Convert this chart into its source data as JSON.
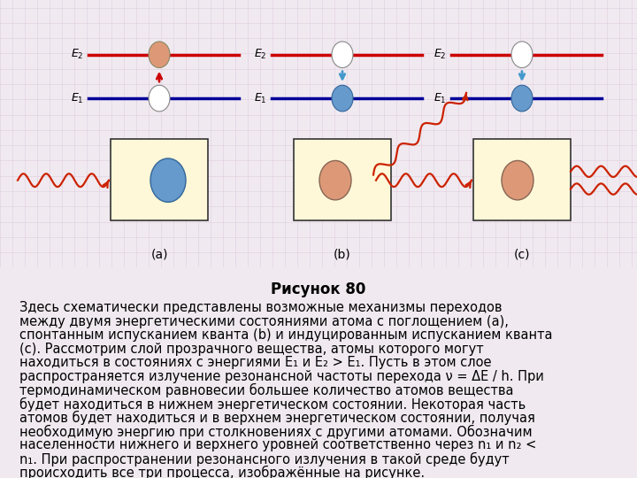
{
  "bg_color": "#f0eaf0",
  "diagram_bg": "#fef8d8",
  "title": "Рисунок 80",
  "title_fontsize": 12,
  "body_lines": [
    "Здесь схематически представлены возможные механизмы переходов",
    "между двумя энергетическими состояниями атома с поглощением (а),",
    "спонтанным испусканием кванта (b) и индуцированным испусканием кванта",
    "(с). Рассмотрим слой прозрачного вещества, атомы которого могут",
    "находиться в состояниях с энергиями E₁ и E₂ > E₁. Пусть в этом слое",
    "распространяется излучение резонансной частоты перехода ν = ΔE / h. При",
    "термодинамическом равновесии большее количество атомов вещества",
    "будет находиться в нижнем энергетическом состоянии. Некоторая часть",
    "атомов будет находиться и в верхнем энергетическом состоянии, получая",
    "необходимую энергию при столкновениях с другими атомами. Обозначим",
    "населенности нижнего и верхнего уровней соответственно через n₁ и n₂ <",
    "n₁. При распространении резонансного излучения в такой среде будут",
    "происходить все три процесса, изображённые на рисунке."
  ],
  "body_fontsize": 10.5,
  "E2_color": "#cc0000",
  "E1_color": "#000099",
  "arrow_up_color": "#cc0000",
  "arrow_down_color": "#4499cc",
  "wave_color": "#cc2200",
  "atom_blue": "#6699cc",
  "atom_orange": "#dd9977",
  "atom_outline": "#555555",
  "labels": [
    "(a)",
    "(b)",
    "(c)"
  ]
}
